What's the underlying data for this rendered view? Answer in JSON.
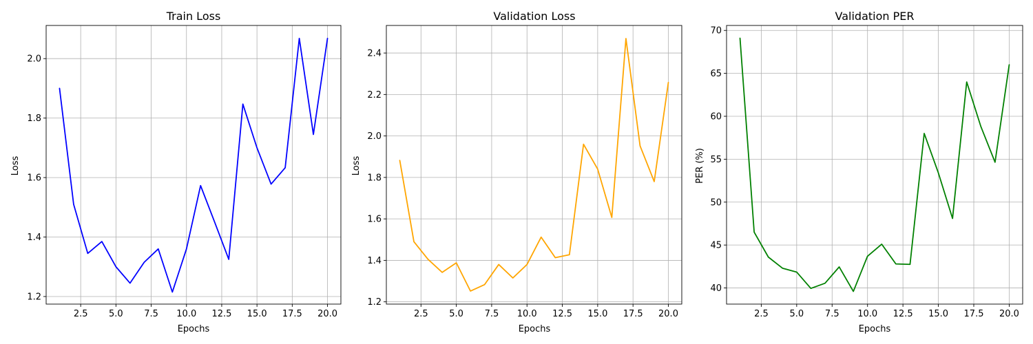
{
  "chart_data": [
    {
      "type": "line",
      "title": "Train Loss",
      "xlabel": "Epochs",
      "ylabel": "Loss",
      "x": [
        1,
        2,
        3,
        4,
        5,
        6,
        7,
        8,
        9,
        10,
        11,
        12,
        13,
        14,
        15,
        16,
        17,
        18,
        19,
        20
      ],
      "series": [
        {
          "values": [
            1.9,
            1.51,
            1.345,
            1.385,
            1.3,
            1.245,
            1.315,
            1.36,
            1.215,
            1.36,
            1.573,
            1.45,
            1.325,
            1.847,
            1.7,
            1.578,
            1.633,
            2.068,
            1.745,
            2.068
          ],
          "color": "#0000ff"
        }
      ],
      "xlim": [
        0.05,
        20.95
      ],
      "ylim": [
        1.1745,
        2.1115
      ],
      "xticks": [
        2.5,
        5.0,
        7.5,
        10.0,
        12.5,
        15.0,
        17.5,
        20.0
      ],
      "xtick_labels": [
        "2.5",
        "5.0",
        "7.5",
        "10.0",
        "12.5",
        "15.0",
        "17.5",
        "20.0"
      ],
      "yticks": [
        1.2,
        1.4,
        1.6,
        1.8,
        2.0
      ],
      "ytick_labels": [
        "1.2",
        "1.4",
        "1.6",
        "1.8",
        "2.0"
      ],
      "grid": true
    },
    {
      "type": "line",
      "title": "Validation Loss",
      "xlabel": "Epochs",
      "ylabel": "Loss",
      "x": [
        1,
        2,
        3,
        4,
        5,
        6,
        7,
        8,
        9,
        10,
        11,
        12,
        13,
        14,
        15,
        16,
        17,
        18,
        19,
        20
      ],
      "series": [
        {
          "values": [
            1.882,
            1.49,
            1.405,
            1.342,
            1.388,
            1.252,
            1.283,
            1.38,
            1.315,
            1.38,
            1.512,
            1.413,
            1.427,
            1.96,
            1.84,
            1.607,
            2.47,
            1.952,
            1.78,
            2.258
          ],
          "color": "#ffa500"
        }
      ],
      "xlim": [
        0.05,
        20.95
      ],
      "ylim": [
        1.189,
        2.533
      ],
      "xticks": [
        2.5,
        5.0,
        7.5,
        10.0,
        12.5,
        15.0,
        17.5,
        20.0
      ],
      "xtick_labels": [
        "2.5",
        "5.0",
        "7.5",
        "10.0",
        "12.5",
        "15.0",
        "17.5",
        "20.0"
      ],
      "yticks": [
        1.2,
        1.4,
        1.6,
        1.8,
        2.0,
        2.2,
        2.4
      ],
      "ytick_labels": [
        "1.2",
        "1.4",
        "1.6",
        "1.8",
        "2.0",
        "2.2",
        "2.4"
      ],
      "grid": true
    },
    {
      "type": "line",
      "title": "Validation PER",
      "xlabel": "Epochs",
      "ylabel": "PER (%)",
      "x": [
        1,
        2,
        3,
        4,
        5,
        6,
        7,
        8,
        9,
        10,
        11,
        12,
        13,
        14,
        15,
        16,
        17,
        18,
        19,
        20
      ],
      "series": [
        {
          "values": [
            69.1,
            46.5,
            43.6,
            42.3,
            41.85,
            39.95,
            40.55,
            42.45,
            39.6,
            43.7,
            45.1,
            42.8,
            42.75,
            58.0,
            53.4,
            48.1,
            64.0,
            58.8,
            54.65,
            66.0
          ],
          "color": "#008000"
        }
      ],
      "xlim": [
        0.05,
        20.95
      ],
      "ylim": [
        38.12,
        70.58
      ],
      "xticks": [
        2.5,
        5.0,
        7.5,
        10.0,
        12.5,
        15.0,
        17.5,
        20.0
      ],
      "xtick_labels": [
        "2.5",
        "5.0",
        "7.5",
        "10.0",
        "12.5",
        "15.0",
        "17.5",
        "20.0"
      ],
      "yticks": [
        40,
        45,
        50,
        55,
        60,
        65,
        70
      ],
      "ytick_labels": [
        "40",
        "45",
        "50",
        "55",
        "60",
        "65",
        "70"
      ],
      "grid": true
    }
  ]
}
